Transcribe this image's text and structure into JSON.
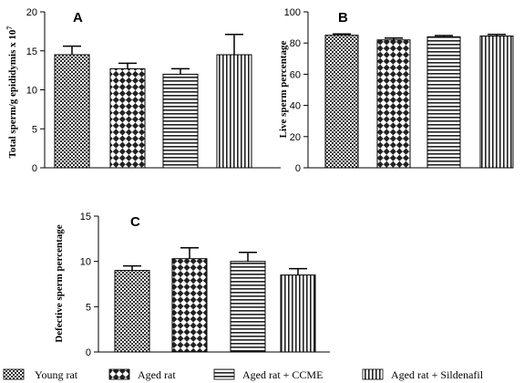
{
  "chart_data": [
    {
      "type": "bar",
      "panel_label": "A",
      "ylabel": "Total sperm/g epididymis x 10",
      "ylabel_exponent": "7",
      "ylim": [
        0,
        20
      ],
      "yticks": [
        0,
        5,
        10,
        15,
        20
      ],
      "categories": [
        "Young rat",
        "Aged rat",
        "Aged rat + CCME",
        "Aged rat + Sildenafil"
      ],
      "values": [
        14.5,
        12.7,
        12.0,
        14.5
      ],
      "errors": [
        1.1,
        0.7,
        0.7,
        2.6
      ]
    },
    {
      "type": "bar",
      "panel_label": "B",
      "ylabel": "Live sperm percentage",
      "ylim": [
        0,
        100
      ],
      "yticks": [
        0,
        20,
        40,
        60,
        80,
        100
      ],
      "categories": [
        "Young rat",
        "Aged rat",
        "Aged rat + CCME",
        "Aged rat + Sildenafil"
      ],
      "values": [
        85,
        82,
        84,
        84.5
      ],
      "errors": [
        0.8,
        1.2,
        0.8,
        1.0
      ]
    },
    {
      "type": "bar",
      "panel_label": "C",
      "ylabel": "Defective sperm percentage",
      "ylim": [
        0,
        15
      ],
      "yticks": [
        0,
        5,
        10,
        15
      ],
      "categories": [
        "Young rat",
        "Aged rat",
        "Aged rat + CCME",
        "Aged rat + Sildenafil"
      ],
      "values": [
        9.0,
        10.3,
        10.0,
        8.5
      ],
      "errors": [
        0.5,
        1.2,
        1.0,
        0.7
      ]
    }
  ],
  "legend": {
    "position": "bottom",
    "items": [
      {
        "label": "Young rat",
        "pattern": "dense-checker"
      },
      {
        "label": "Aged rat",
        "pattern": "coarse-checker"
      },
      {
        "label": "Aged rat + CCME",
        "pattern": "horizontal-stripes"
      },
      {
        "label": "Aged rat + Sildenafil",
        "pattern": "vertical-stripes"
      }
    ]
  }
}
